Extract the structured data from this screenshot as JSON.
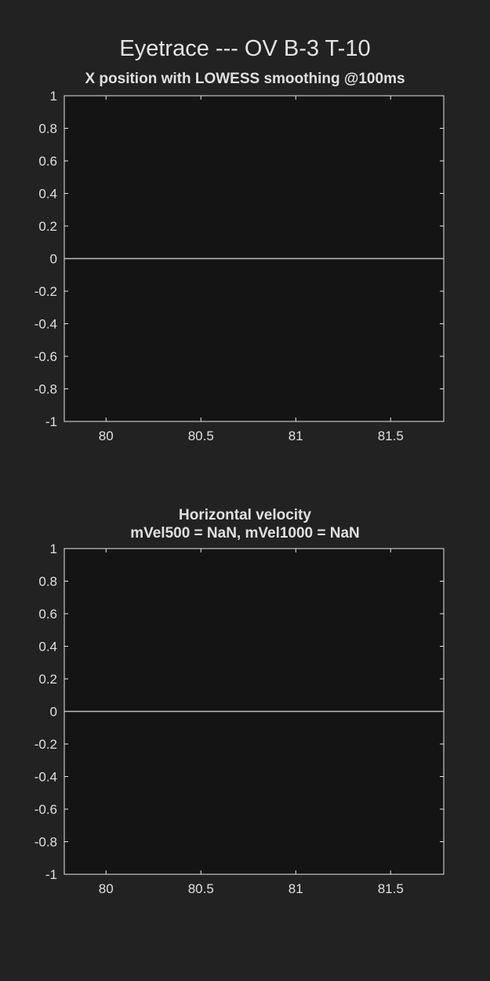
{
  "figure": {
    "title": "Eyetrace --- OV B-3 T-10"
  },
  "colors": {
    "background": "#222222",
    "axes_face": "#141414",
    "axes_edge": "#e6e6e6",
    "text": "#e0e0e0",
    "line": "#bdbdbd"
  },
  "chart_data": [
    {
      "type": "line",
      "title_lines": [
        "X position with LOWESS smoothing @100ms"
      ],
      "xlabel": "",
      "ylabel": "",
      "xlim": [
        79.78,
        81.78
      ],
      "ylim": [
        -1,
        1
      ],
      "xticks": [
        80,
        80.5,
        81,
        81.5
      ],
      "xtick_labels": [
        "80",
        "80.5",
        "81",
        "81.5"
      ],
      "yticks": [
        1,
        0.8,
        0.6,
        0.4,
        0.2,
        0,
        -0.2,
        -0.4,
        -0.6,
        -0.8,
        -1
      ],
      "ytick_labels": [
        "1",
        "0.8",
        "0.6",
        "0.4",
        "0.2",
        "0",
        "-0.2",
        "-0.4",
        "-0.6",
        "-0.8",
        "-1"
      ],
      "grid": false,
      "series": [
        {
          "x": [
            79.78,
            81.78
          ],
          "y": [
            0,
            0
          ]
        }
      ]
    },
    {
      "type": "line",
      "title_lines": [
        "Horizontal velocity",
        "mVel500 = NaN, mVel1000 = NaN"
      ],
      "xlabel": "",
      "ylabel": "",
      "xlim": [
        79.78,
        81.78
      ],
      "ylim": [
        -1,
        1
      ],
      "xticks": [
        80,
        80.5,
        81,
        81.5
      ],
      "xtick_labels": [
        "80",
        "80.5",
        "81",
        "81.5"
      ],
      "yticks": [
        1,
        0.8,
        0.6,
        0.4,
        0.2,
        0,
        -0.2,
        -0.4,
        -0.6,
        -0.8,
        -1
      ],
      "ytick_labels": [
        "1",
        "0.8",
        "0.6",
        "0.4",
        "0.2",
        "0",
        "-0.2",
        "-0.4",
        "-0.6",
        "-0.8",
        "-1"
      ],
      "grid": false,
      "series": [
        {
          "x": [
            79.78,
            81.78
          ],
          "y": [
            0,
            0
          ]
        }
      ]
    }
  ]
}
